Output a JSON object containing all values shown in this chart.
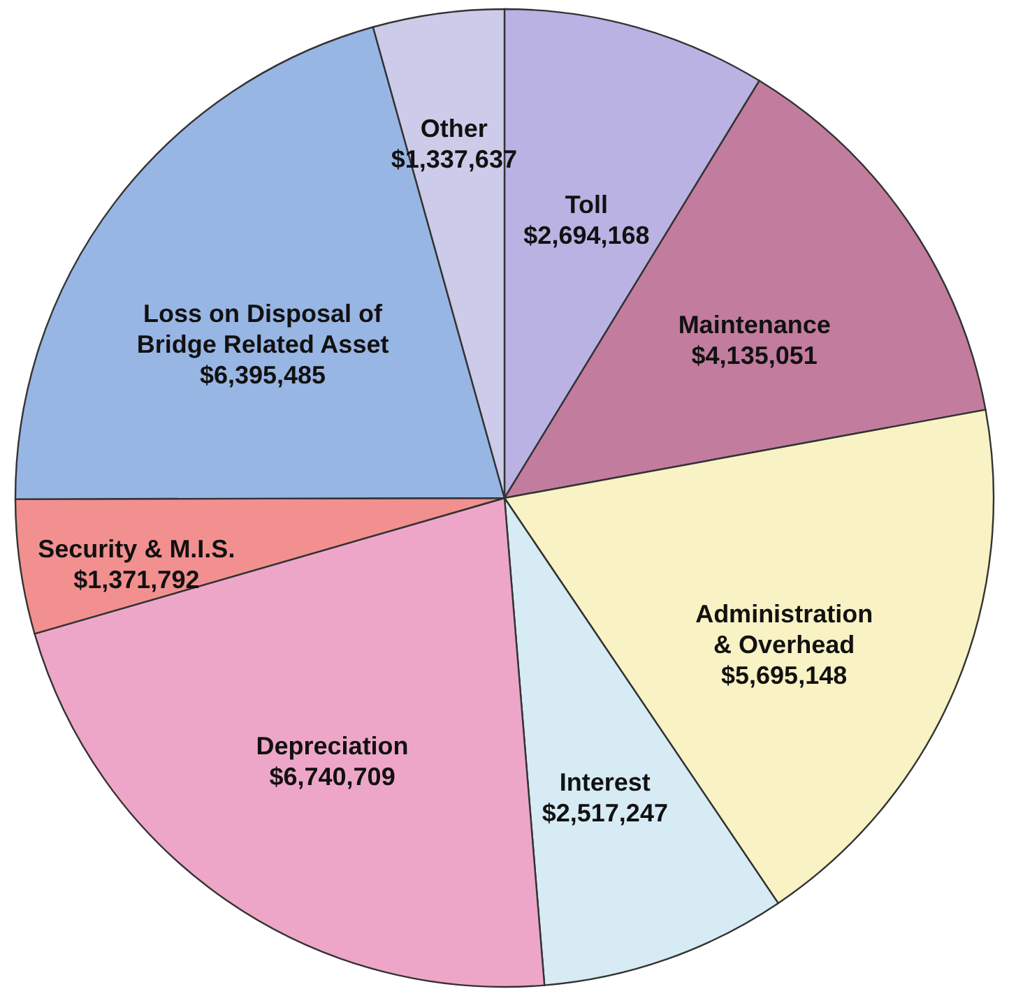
{
  "chart_data": {
    "type": "pie",
    "categories": [
      "Toll",
      "Maintenance",
      "Administration & Overhead",
      "Interest",
      "Depreciation",
      "Security & M.I.S.",
      "Loss on Disposal of Bridge Related Asset",
      "Other"
    ],
    "values": [
      2694168,
      4135051,
      5695148,
      2517247,
      6740709,
      1371792,
      6395485,
      1337637
    ],
    "value_labels": [
      "$2,694,168",
      "$4,135,051",
      "$5,695,148",
      "$2,517,247",
      "$6,740,709",
      "$1,371,792",
      "$6,395,485",
      "$1,337,637"
    ],
    "colors": [
      "#b9b2e2",
      "#c27c9e",
      "#f8f2c4",
      "#d6ebf4",
      "#eea6c8",
      "#f29090",
      "#98b6e4",
      "#cccbea"
    ]
  }
}
